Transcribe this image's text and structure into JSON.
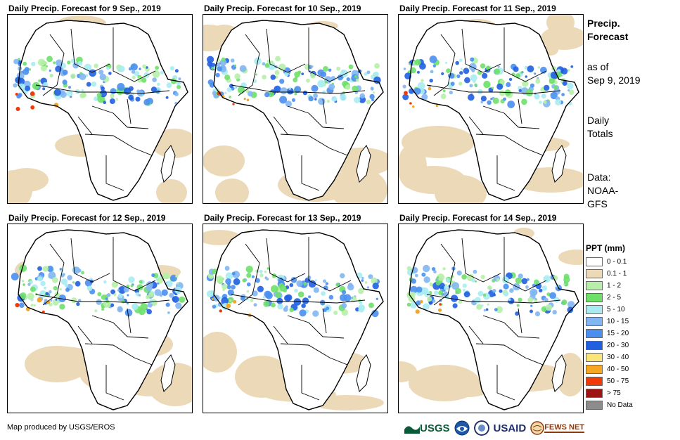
{
  "panels": [
    {
      "title": "Daily Precip. Forecast for 9 Sep., 2019"
    },
    {
      "title": "Daily Precip. Forecast for 10 Sep., 2019"
    },
    {
      "title": "Daily Precip. Forecast for 11 Sep., 2019"
    },
    {
      "title": "Daily Precip. Forecast for 12 Sep., 2019"
    },
    {
      "title": "Daily Precip. Forecast for 13 Sep., 2019"
    },
    {
      "title": "Daily Precip. Forecast for 14 Sep., 2019"
    }
  ],
  "sidebar": {
    "title_line1": "Precip.",
    "title_line2": "Forecast",
    "asof_line1": "as of",
    "asof_line2": "Sep 9, 2019",
    "totals_line1": "Daily",
    "totals_line2": "Totals",
    "data_line1": "Data:",
    "data_line2": "NOAA-",
    "data_line3": "GFS"
  },
  "legend": {
    "title": "PPT (mm)",
    "items": [
      {
        "label": "0 - 0.1",
        "color": "#ffffff"
      },
      {
        "label": "0.1 - 1",
        "color": "#ecd9b7"
      },
      {
        "label": "1 - 2",
        "color": "#b6f0a8"
      },
      {
        "label": "2 - 5",
        "color": "#6ee06a"
      },
      {
        "label": "5 - 10",
        "color": "#a8ecf2"
      },
      {
        "label": "10 - 15",
        "color": "#82b6f2"
      },
      {
        "label": "15 - 20",
        "color": "#4a8ff0"
      },
      {
        "label": "20 - 30",
        "color": "#1f5fe0"
      },
      {
        "label": "30 - 40",
        "color": "#fbe47a"
      },
      {
        "label": "40 - 50",
        "color": "#f5a623"
      },
      {
        "label": "50 - 75",
        "color": "#f03a0a"
      },
      {
        "label": "> 75",
        "color": "#9c1414"
      },
      {
        "label": "No Data",
        "color": "#8c8c8c"
      }
    ]
  },
  "credit": "Map produced by USGS/EROS",
  "logos": {
    "usgs": "USGS",
    "usaid": "USAID",
    "fews": "FEWS NET"
  }
}
